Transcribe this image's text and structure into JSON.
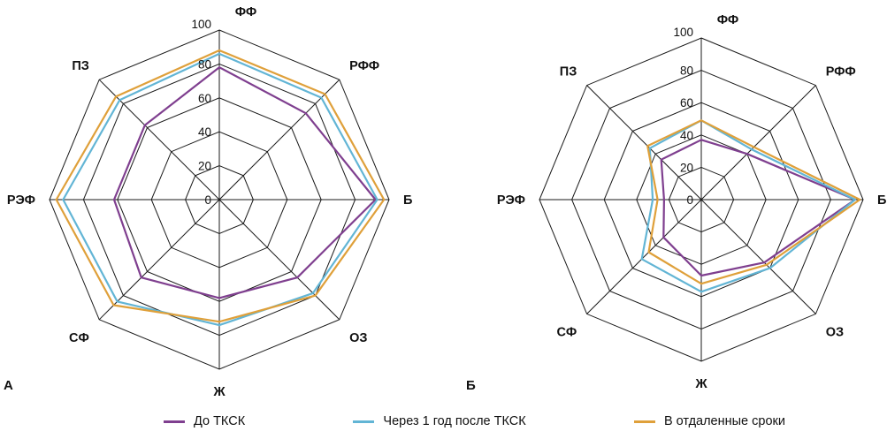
{
  "figure": {
    "panel_a_label": "А",
    "panel_b_label": "Б"
  },
  "legend": {
    "items": [
      {
        "label": "До ТКСК",
        "color": "#7f3f8f"
      },
      {
        "label": "Через 1 год после ТКСК",
        "color": "#62b5d5"
      },
      {
        "label": "В отдаленные сроки",
        "color": "#dfa03a"
      }
    ]
  },
  "chart_data": [
    {
      "type": "radar",
      "panel": "А",
      "categories": [
        "ФФ",
        "РФФ",
        "Б",
        "ОЗ",
        "Ж",
        "СФ",
        "РЭФ",
        "ПЗ"
      ],
      "axis_order": "clockwise-from-top",
      "ticks": [
        0,
        20,
        40,
        60,
        80,
        100
      ],
      "tick_labels": [
        "0",
        "20",
        "40",
        "60",
        "80",
        "100"
      ],
      "rmax": 100,
      "grid": "octagon-rings-and-spokes",
      "series": [
        {
          "name": "До ТКСК",
          "color": "#7f3f8f",
          "values": [
            78,
            72,
            92,
            65,
            58,
            65,
            62,
            62
          ]
        },
        {
          "name": "Через 1 год после ТКСК",
          "color": "#62b5d5",
          "values": [
            86,
            85,
            93,
            78,
            74,
            85,
            92,
            83
          ]
        },
        {
          "name": "В отдаленные сроки",
          "color": "#dfa03a",
          "values": [
            88,
            88,
            97,
            80,
            72,
            88,
            96,
            86
          ]
        }
      ]
    },
    {
      "type": "radar",
      "panel": "Б",
      "categories": [
        "ФФ",
        "РФФ",
        "Б",
        "ОЗ",
        "Ж",
        "СФ",
        "РЭФ",
        "ПЗ"
      ],
      "axis_order": "clockwise-from-top",
      "ticks": [
        0,
        20,
        40,
        60,
        80,
        100
      ],
      "tick_labels": [
        "0",
        "20",
        "40",
        "60",
        "80",
        "100"
      ],
      "rmax": 100,
      "grid": "octagon-rings-and-spokes",
      "series": [
        {
          "name": "До ТКСК",
          "color": "#7f3f8f",
          "values": [
            37,
            40,
            95,
            55,
            47,
            33,
            23,
            35
          ]
        },
        {
          "name": "Через 1 год после ТКСК",
          "color": "#62b5d5",
          "values": [
            49,
            44,
            95,
            60,
            57,
            52,
            30,
            45
          ]
        },
        {
          "name": "В отдаленные сроки",
          "color": "#dfa03a",
          "values": [
            49,
            46,
            98,
            57,
            52,
            46,
            27,
            47
          ]
        }
      ]
    }
  ]
}
